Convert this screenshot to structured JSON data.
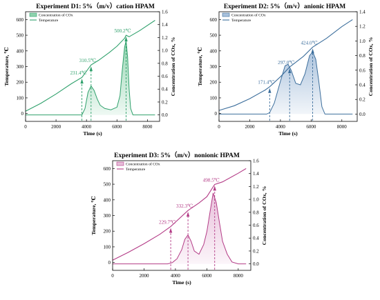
{
  "chart_data": [
    {
      "type": "area",
      "id": "d1",
      "title": "Experiment D1:  5%（m/v）cation HPAM",
      "xlabel": "Time (s)",
      "ylabel_left": "Temperature, ℃",
      "ylabel_right": "Concentration of COx, %",
      "xlim": [
        0,
        8800
      ],
      "ylim_left": [
        -50,
        650
      ],
      "ylim_right": [
        -0.1,
        1.6
      ],
      "xticks": [
        "0",
        "2000",
        "4000",
        "6000",
        "8000"
      ],
      "yticks_left": [
        "0",
        "100",
        "200",
        "300",
        "400",
        "500",
        "600"
      ],
      "yticks_right": [
        "0.0",
        "0.2",
        "0.4",
        "0.6",
        "0.8",
        "1.0",
        "1.2",
        "1.4",
        "1.6"
      ],
      "legend": [
        "Concentration of COx",
        "Temperature"
      ],
      "color": "#2ea06b",
      "fill_color": "#8fd3ae",
      "temperature": {
        "x": [
          0,
          1000,
          2000,
          3000,
          3700,
          4300,
          4800,
          5500,
          6000,
          6500,
          6600,
          6800,
          7500,
          8500
        ],
        "y": [
          15,
          65,
          125,
          190,
          231,
          310,
          340,
          390,
          430,
          480,
          500,
          490,
          530,
          595
        ]
      },
      "concentration": {
        "x": [
          0,
          3400,
          3700,
          3900,
          4100,
          4300,
          4500,
          4700,
          4900,
          5200,
          5600,
          6000,
          6200,
          6350,
          6500,
          6600,
          6700,
          6800,
          6900,
          7050,
          8500
        ],
        "y": [
          0,
          0,
          0,
          0.1,
          0.35,
          0.45,
          0.38,
          0.25,
          0.15,
          0.1,
          0.08,
          0.12,
          0.3,
          0.7,
          1.05,
          1.15,
          0.9,
          0.4,
          0.1,
          0,
          0
        ]
      },
      "markers": [
        {
          "x": 3700,
          "y": 231.4,
          "label": "231.4℃"
        },
        {
          "x": 4300,
          "y": 310.5,
          "label": "310.5℃"
        },
        {
          "x": 6600,
          "y": 500.2,
          "label": "500.2℃"
        }
      ]
    },
    {
      "type": "area",
      "id": "d2",
      "title": "Experiment D2:  5%（m/v）anionic HPAM",
      "xlabel": "Time (s)",
      "ylabel_left": "Temperature, ℃",
      "ylabel_right": "Concentration of COx, %",
      "xlim": [
        0,
        9000
      ],
      "ylim_left": [
        -50,
        650
      ],
      "ylim_right": [
        -0.1,
        1.4
      ],
      "xticks": [
        "0",
        "2000",
        "4000",
        "6000",
        "8000"
      ],
      "yticks_left": [
        "0",
        "100",
        "200",
        "300",
        "400",
        "500",
        "600"
      ],
      "yticks_right": [
        "0.0",
        "0.2",
        "0.4",
        "0.6",
        "0.8",
        "1.0",
        "1.2",
        "1.4"
      ],
      "legend": [
        "Concentration of COx",
        "Temperature"
      ],
      "color": "#3c6e9c",
      "fill_color": "#a9c1dc",
      "temperature": {
        "x": [
          0,
          1000,
          2000,
          3000,
          3300,
          4000,
          4600,
          5500,
          6100,
          7000,
          8000,
          8700
        ],
        "y": [
          20,
          50,
          95,
          150,
          171,
          235,
          297,
          365,
          424,
          480,
          555,
          600
        ]
      },
      "concentration": {
        "x": [
          0,
          3100,
          3300,
          3600,
          4000,
          4300,
          4500,
          4700,
          5000,
          5300,
          5600,
          5900,
          6100,
          6300,
          6500,
          6700,
          6900,
          8700
        ],
        "y": [
          0,
          0,
          0.02,
          0.15,
          0.45,
          0.66,
          0.68,
          0.6,
          0.42,
          0.4,
          0.55,
          0.8,
          0.85,
          0.75,
          0.45,
          0.1,
          0,
          0
        ]
      },
      "markers": [
        {
          "x": 3300,
          "y": 171.4,
          "label": "171.4℃"
        },
        {
          "x": 4600,
          "y": 297.0,
          "label": "297.0℃"
        },
        {
          "x": 6100,
          "y": 424.0,
          "label": "424.0℃"
        }
      ]
    },
    {
      "type": "area",
      "id": "d3",
      "title": "Experiment D3:  5%（m/v）nonionic HPAM",
      "xlabel": "Time (s)",
      "ylabel_left": "Temperature, ℃",
      "ylabel_right": "Concentration of COx, %",
      "xlim": [
        0,
        8800
      ],
      "ylim_left": [
        -50,
        650
      ],
      "ylim_right": [
        -0.1,
        1.6
      ],
      "xticks": [
        "0",
        "2000",
        "4000",
        "6000",
        "8000"
      ],
      "yticks_left": [
        "0",
        "100",
        "200",
        "300",
        "400",
        "500",
        "600"
      ],
      "yticks_right": [
        "0.0",
        "0.2",
        "0.4",
        "0.6",
        "0.8",
        "1.0",
        "1.2",
        "1.4",
        "1.6"
      ],
      "legend": [
        "Concentration of COx",
        "Temperature"
      ],
      "color": "#b33b86",
      "fill_color": "#e7bcd9",
      "temperature": {
        "x": [
          0,
          1000,
          2000,
          3000,
          3700,
          4800,
          5500,
          6000,
          6500,
          7000,
          8000,
          8500
        ],
        "y": [
          15,
          65,
          120,
          180,
          230,
          332,
          380,
          420,
          498,
          515,
          570,
          600
        ]
      },
      "concentration": {
        "x": [
          0,
          3500,
          3800,
          4100,
          4400,
          4600,
          4800,
          5000,
          5200,
          5500,
          5800,
          6000,
          6200,
          6400,
          6600,
          6800,
          7000,
          7300,
          7600,
          8000,
          8500
        ],
        "y": [
          0,
          0,
          0.02,
          0.08,
          0.22,
          0.38,
          0.45,
          0.35,
          0.2,
          0.15,
          0.3,
          0.5,
          0.8,
          1.1,
          0.95,
          0.65,
          0.35,
          0.15,
          0.03,
          0,
          0
        ]
      },
      "markers": [
        {
          "x": 3700,
          "y": 229.7,
          "label": "229.7℃"
        },
        {
          "x": 4800,
          "y": 332.3,
          "label": "332.3℃"
        },
        {
          "x": 6500,
          "y": 498.5,
          "label": "498.5℃"
        }
      ]
    }
  ]
}
